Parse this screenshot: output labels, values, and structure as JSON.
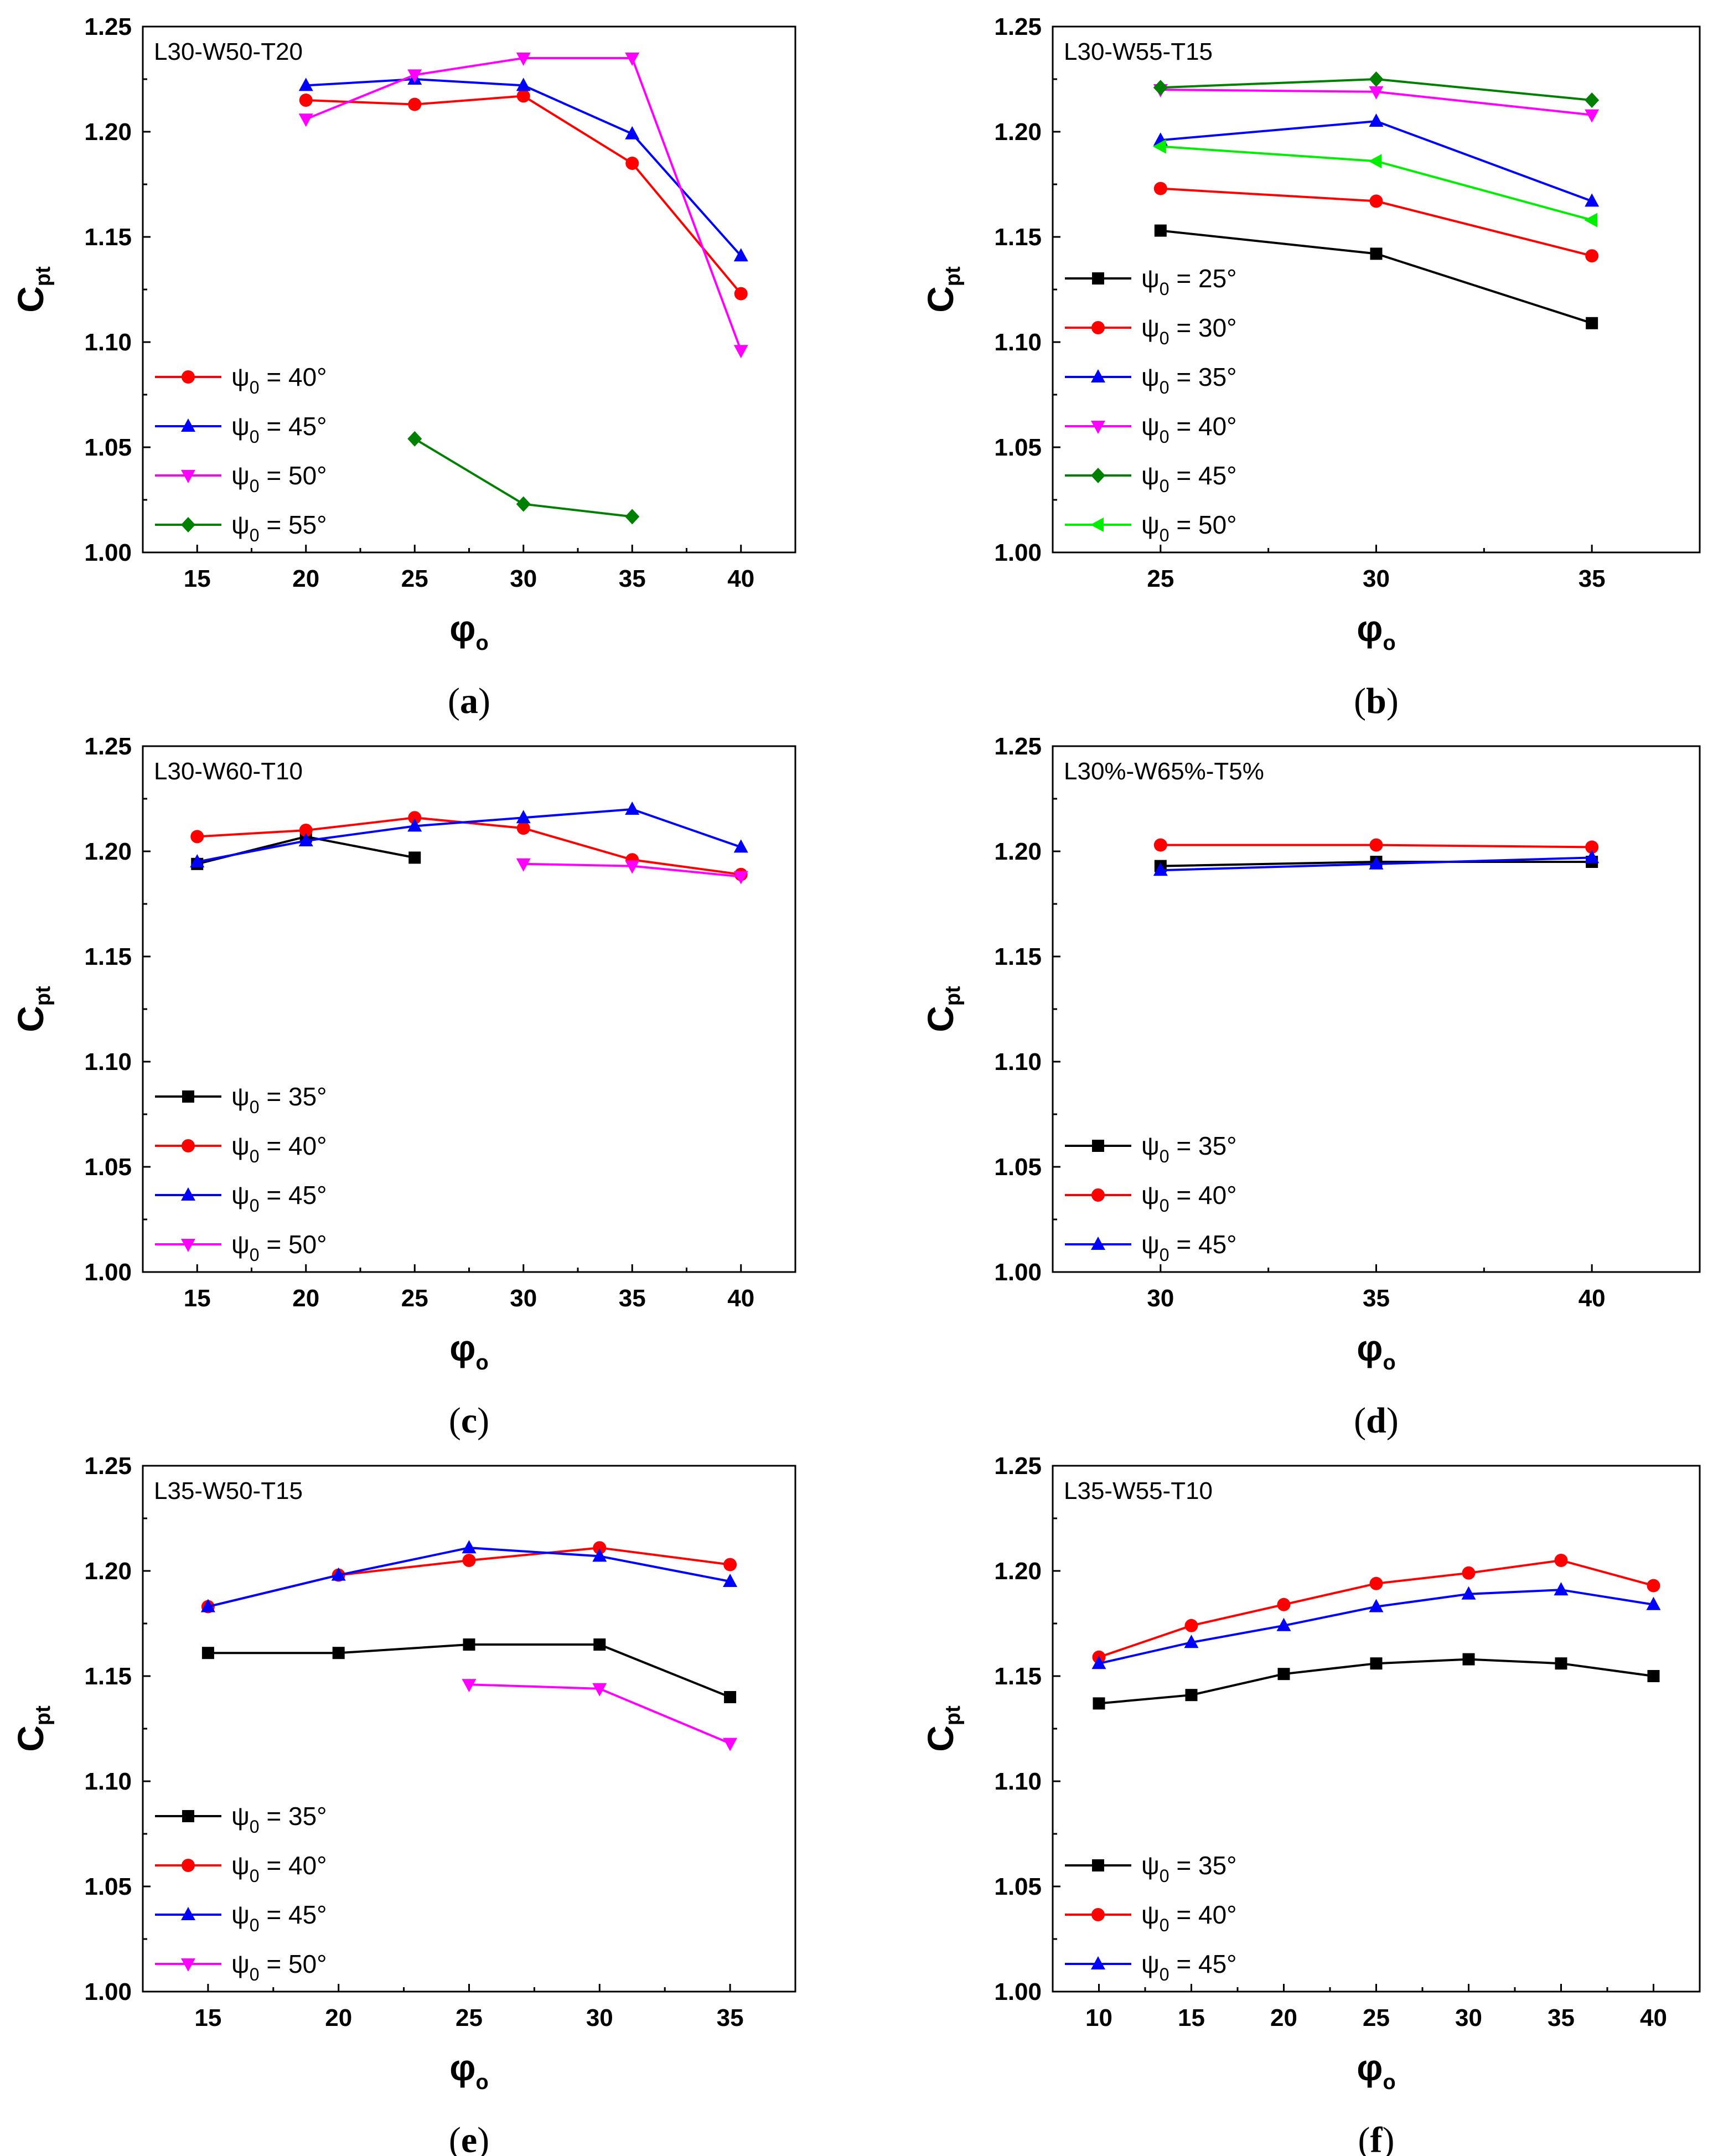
{
  "figure": {
    "caption_open": "(",
    "caption_close": ")"
  },
  "chart_data": [
    {
      "panel": "a",
      "type": "line",
      "title": "L30-W50-T20",
      "caption": "a",
      "xlabel": "φ",
      "xlabel_sub": "o",
      "ylabel": "C",
      "ylabel_sub": "pt",
      "xlim": [
        12.5,
        42.5
      ],
      "ylim": [
        1.0,
        1.25
      ],
      "xticks": [
        15,
        20,
        25,
        30,
        35,
        40
      ],
      "yticks": [
        1.0,
        1.05,
        1.1,
        1.15,
        1.2,
        1.25
      ],
      "ytick_labels": [
        "1.00",
        "1.05",
        "1.10",
        "1.15",
        "1.20",
        "1.25"
      ],
      "legend_position": "bottom-left",
      "series": [
        {
          "name": "ψ0 = 40°",
          "label_pre": "ψ",
          "label_sub": "0",
          "label_post": " = 40°",
          "color": "#ff0000",
          "marker": "circle",
          "x": [
            20,
            25,
            30,
            35,
            40
          ],
          "y": [
            1.215,
            1.213,
            1.217,
            1.185,
            1.123
          ]
        },
        {
          "name": "ψ0 = 45°",
          "label_pre": "ψ",
          "label_sub": "0",
          "label_post": " = 45°",
          "color": "#0000ff",
          "marker": "triangle-up",
          "x": [
            20,
            25,
            30,
            35,
            40
          ],
          "y": [
            1.222,
            1.225,
            1.222,
            1.199,
            1.141
          ]
        },
        {
          "name": "ψ0 = 50°",
          "label_pre": "ψ",
          "label_sub": "0",
          "label_post": " = 50°",
          "color": "#ff00ff",
          "marker": "triangle-down",
          "x": [
            20,
            25,
            30,
            35,
            40
          ],
          "y": [
            1.206,
            1.227,
            1.235,
            1.235,
            1.096
          ]
        },
        {
          "name": "ψ0 = 55°",
          "label_pre": "ψ",
          "label_sub": "0",
          "label_post": " = 55°",
          "color": "#008000",
          "marker": "diamond",
          "x": [
            25,
            30,
            35
          ],
          "y": [
            1.054,
            1.023,
            1.017
          ]
        }
      ]
    },
    {
      "panel": "b",
      "type": "line",
      "title": "L30-W55-T15",
      "caption": "b",
      "xlabel": "φ",
      "xlabel_sub": "o",
      "ylabel": "C",
      "ylabel_sub": "pt",
      "xlim": [
        22.5,
        37.5
      ],
      "ylim": [
        1.0,
        1.25
      ],
      "xticks": [
        25,
        30,
        35
      ],
      "yticks": [
        1.0,
        1.05,
        1.1,
        1.15,
        1.2,
        1.25
      ],
      "ytick_labels": [
        "1.00",
        "1.05",
        "1.10",
        "1.15",
        "1.20",
        "1.25"
      ],
      "legend_position": "bottom-left",
      "series": [
        {
          "name": "ψ0 = 25°",
          "label_pre": "ψ",
          "label_sub": "0",
          "label_post": " = 25°",
          "color": "#000000",
          "marker": "square",
          "x": [
            25,
            30,
            35
          ],
          "y": [
            1.153,
            1.142,
            1.109
          ]
        },
        {
          "name": "ψ0 = 30°",
          "label_pre": "ψ",
          "label_sub": "0",
          "label_post": " = 30°",
          "color": "#ff0000",
          "marker": "circle",
          "x": [
            25,
            30,
            35
          ],
          "y": [
            1.173,
            1.167,
            1.141
          ]
        },
        {
          "name": "ψ0 = 35°",
          "label_pre": "ψ",
          "label_sub": "0",
          "label_post": " = 35°",
          "color": "#0000ff",
          "marker": "triangle-up",
          "x": [
            25,
            30,
            35
          ],
          "y": [
            1.196,
            1.205,
            1.167
          ]
        },
        {
          "name": "ψ0 = 40°",
          "label_pre": "ψ",
          "label_sub": "0",
          "label_post": " = 40°",
          "color": "#ff00ff",
          "marker": "triangle-down",
          "x": [
            25,
            30,
            35
          ],
          "y": [
            1.22,
            1.219,
            1.208
          ]
        },
        {
          "name": "ψ0 = 45°",
          "label_pre": "ψ",
          "label_sub": "0",
          "label_post": " = 45°",
          "color": "#008000",
          "marker": "diamond",
          "x": [
            25,
            30,
            35
          ],
          "y": [
            1.221,
            1.225,
            1.215
          ]
        },
        {
          "name": "ψ0 = 50°",
          "label_pre": "ψ",
          "label_sub": "0",
          "label_post": " = 50°",
          "color": "#00ee00",
          "marker": "triangle-left",
          "x": [
            25,
            30,
            35
          ],
          "y": [
            1.193,
            1.186,
            1.158
          ]
        }
      ]
    },
    {
      "panel": "c",
      "type": "line",
      "title": "L30-W60-T10",
      "caption": "c",
      "xlabel": "φ",
      "xlabel_sub": "o",
      "ylabel": "C",
      "ylabel_sub": "pt",
      "xlim": [
        12.5,
        42.5
      ],
      "ylim": [
        1.0,
        1.25
      ],
      "xticks": [
        15,
        20,
        25,
        30,
        35,
        40
      ],
      "yticks": [
        1.0,
        1.05,
        1.1,
        1.15,
        1.2,
        1.25
      ],
      "ytick_labels": [
        "1.00",
        "1.05",
        "1.10",
        "1.15",
        "1.20",
        "1.25"
      ],
      "legend_position": "bottom-left",
      "series": [
        {
          "name": "ψ0 = 35°",
          "label_pre": "ψ",
          "label_sub": "0",
          "label_post": " = 35°",
          "color": "#000000",
          "marker": "square",
          "x": [
            15,
            20,
            25
          ],
          "y": [
            1.194,
            1.207,
            1.197
          ]
        },
        {
          "name": "ψ0 = 40°",
          "label_pre": "ψ",
          "label_sub": "0",
          "label_post": " = 40°",
          "color": "#ff0000",
          "marker": "circle",
          "x": [
            15,
            20,
            25,
            30,
            35,
            40
          ],
          "y": [
            1.207,
            1.21,
            1.216,
            1.211,
            1.196,
            1.189
          ]
        },
        {
          "name": "ψ0 = 45°",
          "label_pre": "ψ",
          "label_sub": "0",
          "label_post": " = 45°",
          "color": "#0000ff",
          "marker": "triangle-up",
          "x": [
            15,
            20,
            25,
            30,
            35,
            40
          ],
          "y": [
            1.195,
            1.205,
            1.212,
            1.216,
            1.22,
            1.202
          ]
        },
        {
          "name": "ψ0 = 50°",
          "label_pre": "ψ",
          "label_sub": "0",
          "label_post": " = 50°",
          "color": "#ff00ff",
          "marker": "triangle-down",
          "x": [
            30,
            35,
            40
          ],
          "y": [
            1.194,
            1.193,
            1.188
          ]
        }
      ]
    },
    {
      "panel": "d",
      "type": "line",
      "title": "L30%-W65%-T5%",
      "caption": "d",
      "xlabel": "φ",
      "xlabel_sub": "o",
      "ylabel": "C",
      "ylabel_sub": "pt",
      "xlim": [
        27.5,
        42.5
      ],
      "ylim": [
        1.0,
        1.25
      ],
      "xticks": [
        30,
        35,
        40
      ],
      "yticks": [
        1.0,
        1.05,
        1.1,
        1.15,
        1.2,
        1.25
      ],
      "ytick_labels": [
        "1.00",
        "1.05",
        "1.10",
        "1.15",
        "1.20",
        "1.25"
      ],
      "legend_position": "bottom-left",
      "series": [
        {
          "name": "ψ0 = 35°",
          "label_pre": "ψ",
          "label_sub": "0",
          "label_post": " = 35°",
          "color": "#000000",
          "marker": "square",
          "x": [
            30,
            35,
            40
          ],
          "y": [
            1.193,
            1.195,
            1.195
          ]
        },
        {
          "name": "ψ0 = 40°",
          "label_pre": "ψ",
          "label_sub": "0",
          "label_post": " = 40°",
          "color": "#ff0000",
          "marker": "circle",
          "x": [
            30,
            35,
            40
          ],
          "y": [
            1.203,
            1.203,
            1.202
          ]
        },
        {
          "name": "ψ0 = 45°",
          "label_pre": "ψ",
          "label_sub": "0",
          "label_post": " = 45°",
          "color": "#0000ff",
          "marker": "triangle-up",
          "x": [
            30,
            35,
            40
          ],
          "y": [
            1.191,
            1.194,
            1.197
          ]
        }
      ]
    },
    {
      "panel": "e",
      "type": "line",
      "title": "L35-W50-T15",
      "caption": "e",
      "xlabel": "φ",
      "xlabel_sub": "o",
      "ylabel": "C",
      "ylabel_sub": "pt",
      "xlim": [
        12.5,
        37.5
      ],
      "ylim": [
        1.0,
        1.25
      ],
      "xticks": [
        15,
        20,
        25,
        30,
        35
      ],
      "yticks": [
        1.0,
        1.05,
        1.1,
        1.15,
        1.2,
        1.25
      ],
      "ytick_labels": [
        "1.00",
        "1.05",
        "1.10",
        "1.15",
        "1.20",
        "1.25"
      ],
      "legend_position": "bottom-left",
      "series": [
        {
          "name": "ψ0 = 35°",
          "label_pre": "ψ",
          "label_sub": "0",
          "label_post": " = 35°",
          "color": "#000000",
          "marker": "square",
          "x": [
            15,
            20,
            25,
            30,
            35
          ],
          "y": [
            1.161,
            1.161,
            1.165,
            1.165,
            1.14
          ]
        },
        {
          "name": "ψ0 = 40°",
          "label_pre": "ψ",
          "label_sub": "0",
          "label_post": " = 40°",
          "color": "#ff0000",
          "marker": "circle",
          "x": [
            15,
            20,
            25,
            30,
            35
          ],
          "y": [
            1.183,
            1.198,
            1.205,
            1.211,
            1.203
          ]
        },
        {
          "name": "ψ0 = 45°",
          "label_pre": "ψ",
          "label_sub": "0",
          "label_post": " = 45°",
          "color": "#0000ff",
          "marker": "triangle-up",
          "x": [
            15,
            20,
            25,
            30,
            35
          ],
          "y": [
            1.183,
            1.198,
            1.211,
            1.207,
            1.195
          ]
        },
        {
          "name": "ψ0 = 50°",
          "label_pre": "ψ",
          "label_sub": "0",
          "label_post": " = 50°",
          "color": "#ff00ff",
          "marker": "triangle-down",
          "x": [
            25,
            30,
            35
          ],
          "y": [
            1.146,
            1.144,
            1.118
          ]
        }
      ]
    },
    {
      "panel": "f",
      "type": "line",
      "title": "L35-W55-T10",
      "caption": "f",
      "xlabel": "φ",
      "xlabel_sub": "o",
      "ylabel": "C",
      "ylabel_sub": "pt",
      "xlim": [
        7.5,
        42.5
      ],
      "ylim": [
        1.0,
        1.25
      ],
      "xticks": [
        10,
        15,
        20,
        25,
        30,
        35,
        40
      ],
      "yticks": [
        1.0,
        1.05,
        1.1,
        1.15,
        1.2,
        1.25
      ],
      "ytick_labels": [
        "1.00",
        "1.05",
        "1.10",
        "1.15",
        "1.20",
        "1.25"
      ],
      "legend_position": "bottom-left",
      "series": [
        {
          "name": "ψ0 = 35°",
          "label_pre": "ψ",
          "label_sub": "0",
          "label_post": " = 35°",
          "color": "#000000",
          "marker": "square",
          "x": [
            10,
            15,
            20,
            25,
            30,
            35,
            40
          ],
          "y": [
            1.137,
            1.141,
            1.151,
            1.156,
            1.158,
            1.156,
            1.15
          ]
        },
        {
          "name": "ψ0 = 40°",
          "label_pre": "ψ",
          "label_sub": "0",
          "label_post": " = 40°",
          "color": "#ff0000",
          "marker": "circle",
          "x": [
            10,
            15,
            20,
            25,
            30,
            35,
            40
          ],
          "y": [
            1.159,
            1.174,
            1.184,
            1.194,
            1.199,
            1.205,
            1.193
          ]
        },
        {
          "name": "ψ0 = 45°",
          "label_pre": "ψ",
          "label_sub": "0",
          "label_post": " = 45°",
          "color": "#0000ff",
          "marker": "triangle-up",
          "x": [
            10,
            15,
            20,
            25,
            30,
            35,
            40
          ],
          "y": [
            1.156,
            1.166,
            1.174,
            1.183,
            1.189,
            1.191,
            1.184
          ]
        }
      ]
    }
  ]
}
